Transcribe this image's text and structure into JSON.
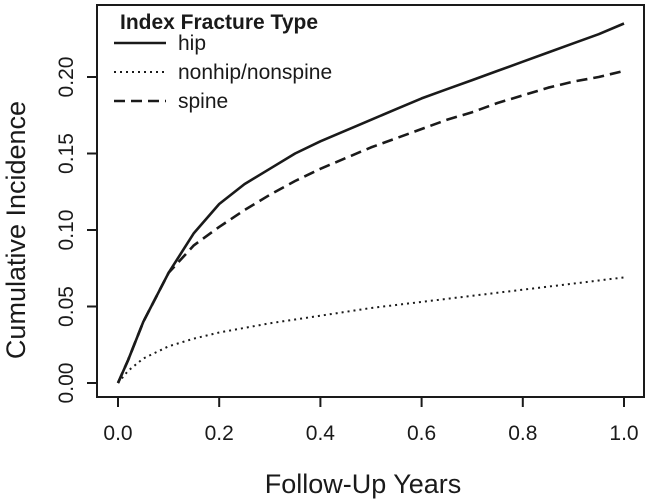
{
  "chart_data": {
    "type": "line",
    "title": "",
    "xlabel": "Follow-Up Years",
    "ylabel": "Cumulative Incidence",
    "xlim": [
      0,
      1
    ],
    "ylim": [
      0,
      0.22
    ],
    "xticks": [
      0.0,
      0.2,
      0.4,
      0.6,
      0.8,
      1.0
    ],
    "xtick_labels": [
      "0.0",
      "0.2",
      "0.4",
      "0.6",
      "0.8",
      "1.0"
    ],
    "yticks": [
      0.0,
      0.05,
      0.1,
      0.15,
      0.2
    ],
    "ytick_labels": [
      "0.00",
      "0.05",
      "0.10",
      "0.15",
      "0.20"
    ],
    "grid": false,
    "legend": {
      "title": "Index Fracture Type",
      "placement": "top-left"
    },
    "series": [
      {
        "name": "hip",
        "line_style": "solid",
        "x": [
          0,
          0.02,
          0.05,
          0.1,
          0.15,
          0.2,
          0.25,
          0.3,
          0.35,
          0.4,
          0.45,
          0.5,
          0.55,
          0.6,
          0.65,
          0.7,
          0.75,
          0.8,
          0.85,
          0.9,
          0.95,
          1.0
        ],
        "y": [
          0,
          0.015,
          0.04,
          0.072,
          0.098,
          0.117,
          0.13,
          0.14,
          0.15,
          0.158,
          0.165,
          0.172,
          0.179,
          0.186,
          0.192,
          0.198,
          0.204,
          0.21,
          0.216,
          0.222,
          0.228,
          0.235
        ]
      },
      {
        "name": "nonhip/nonspine",
        "line_style": "dotted",
        "x": [
          0,
          0.02,
          0.05,
          0.1,
          0.15,
          0.2,
          0.3,
          0.4,
          0.5,
          0.6,
          0.7,
          0.8,
          0.9,
          1.0
        ],
        "y": [
          0,
          0.008,
          0.016,
          0.024,
          0.029,
          0.033,
          0.039,
          0.044,
          0.049,
          0.053,
          0.057,
          0.061,
          0.065,
          0.069
        ]
      },
      {
        "name": "spine",
        "line_style": "dashed",
        "x": [
          0,
          0.02,
          0.05,
          0.1,
          0.15,
          0.2,
          0.25,
          0.3,
          0.35,
          0.4,
          0.45,
          0.5,
          0.55,
          0.6,
          0.65,
          0.7,
          0.75,
          0.8,
          0.85,
          0.9,
          0.95,
          1.0
        ],
        "y": [
          0,
          0.015,
          0.04,
          0.072,
          0.09,
          0.102,
          0.113,
          0.123,
          0.132,
          0.14,
          0.147,
          0.154,
          0.16,
          0.166,
          0.172,
          0.177,
          0.183,
          0.188,
          0.193,
          0.197,
          0.2,
          0.204
        ]
      }
    ]
  }
}
